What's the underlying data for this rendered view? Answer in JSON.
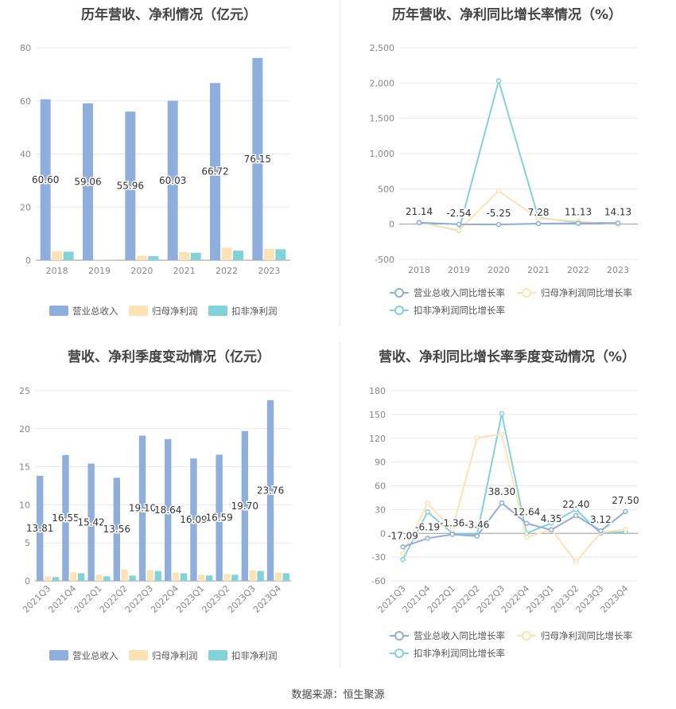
{
  "source_text": "数据来源：恒生聚源",
  "chart_data": [
    {
      "id": "annual-bar",
      "type": "bar",
      "title": "历年营收、净利情况（亿元）",
      "categories": [
        "2018",
        "2019",
        "2020",
        "2021",
        "2022",
        "2023"
      ],
      "series": [
        {
          "name": "营业总收入",
          "color": "#8eaedd",
          "values": [
            60.6,
            59.06,
            55.96,
            60.03,
            66.72,
            76.15
          ]
        },
        {
          "name": "归母净利润",
          "color": "#fde2b4",
          "values": [
            3.4,
            0.3,
            1.7,
            3.0,
            4.7,
            4.3
          ]
        },
        {
          "name": "扣非净利润",
          "color": "#7fd3d9",
          "values": [
            3.2,
            0.1,
            1.5,
            2.8,
            3.6,
            4.1
          ]
        }
      ],
      "labels": [
        "60.60",
        "59.06",
        "55.96",
        "60.03",
        "66.72",
        "76.15"
      ],
      "yticks": [
        "0",
        "20",
        "40",
        "60",
        "80"
      ],
      "ylim": [
        0,
        80
      ]
    },
    {
      "id": "annual-line",
      "type": "line",
      "title": "历年营收、净利同比增长率情况（%）",
      "categories": [
        "2018",
        "2019",
        "2020",
        "2021",
        "2022",
        "2023"
      ],
      "series": [
        {
          "name": "营业总收入同比增长率",
          "color": "#8eaedd",
          "values": [
            21.14,
            -2.54,
            -5.25,
            7.28,
            11.13,
            14.13
          ]
        },
        {
          "name": "归母净利润同比增长率",
          "color": "#fde2b4",
          "values": [
            20,
            -85,
            470,
            80,
            40,
            -8
          ]
        },
        {
          "name": "扣非净利润同比增长率",
          "color": "#7fd3d9",
          "values": [
            25,
            -90,
            2030,
            90,
            25,
            14
          ]
        }
      ],
      "labels": [
        "21.14",
        "-2.54",
        "-5.25",
        "7.28",
        "11.13",
        "14.13"
      ],
      "yticks": [
        "-500",
        "0",
        "500",
        "1,000",
        "1,500",
        "2,000",
        "2,500"
      ],
      "ylim": [
        -500,
        2500
      ]
    },
    {
      "id": "quarter-bar",
      "type": "bar",
      "title": "营收、净利季度变动情况（亿元）",
      "categories": [
        "2021Q3",
        "2021Q4",
        "2022Q1",
        "2022Q2",
        "2022Q3",
        "2022Q4",
        "2023Q1",
        "2023Q2",
        "2023Q3",
        "2023Q4"
      ],
      "series": [
        {
          "name": "营业总收入",
          "color": "#8eaedd",
          "values": [
            13.81,
            16.55,
            15.42,
            13.56,
            19.1,
            18.64,
            16.09,
            16.59,
            19.7,
            23.76
          ]
        },
        {
          "name": "归母净利润",
          "color": "#fde2b4",
          "values": [
            0.6,
            1.1,
            0.8,
            1.5,
            1.4,
            1.1,
            0.8,
            0.9,
            1.4,
            1.1
          ]
        },
        {
          "name": "扣非净利润",
          "color": "#7fd3d9",
          "values": [
            0.5,
            1.0,
            0.6,
            0.7,
            1.3,
            1.0,
            0.7,
            0.8,
            1.3,
            1.0
          ]
        }
      ],
      "labels": [
        "13.81",
        "16.55",
        "15.42",
        "13.56",
        "19.10",
        "18.64",
        "16.09",
        "16.59",
        "19.70",
        "23.76"
      ],
      "yticks": [
        "0",
        "5",
        "10",
        "15",
        "20",
        "25"
      ],
      "ylim": [
        0,
        25
      ]
    },
    {
      "id": "quarter-line",
      "type": "line",
      "title": "营收、净利同比增长率季度变动情况（%）",
      "categories": [
        "2021Q3",
        "2021Q4",
        "2022Q1",
        "2022Q2",
        "2022Q3",
        "2022Q4",
        "2023Q1",
        "2023Q2",
        "2023Q3",
        "2023Q4"
      ],
      "series": [
        {
          "name": "营业总收入同比增长率",
          "color": "#8eaedd",
          "values": [
            -17.09,
            -6.19,
            -1.36,
            -3.46,
            38.3,
            12.64,
            4.35,
            22.4,
            3.12,
            27.5
          ]
        },
        {
          "name": "归母净利润同比增长率",
          "color": "#fde2b4",
          "values": [
            -25,
            38,
            5,
            121,
            125,
            -5,
            5,
            -36,
            1,
            5
          ]
        },
        {
          "name": "扣非净利润同比增长率",
          "color": "#7fd3d9",
          "values": [
            -33,
            27,
            0,
            -2,
            151,
            0,
            13,
            30,
            0,
            2
          ]
        }
      ],
      "labels": [
        "-17.09",
        "-6.19",
        "-1.36",
        "-3.46",
        "38.30",
        "12.64",
        "4.35",
        "22.40",
        "3.12",
        "27.50"
      ],
      "yticks": [
        "-60",
        "-30",
        "0",
        "30",
        "60",
        "90",
        "120",
        "150",
        "180"
      ],
      "ylim": [
        -60,
        180
      ]
    }
  ]
}
